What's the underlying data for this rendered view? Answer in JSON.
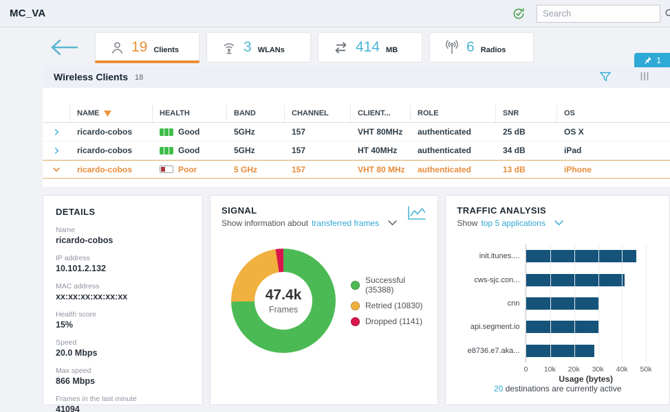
{
  "app": {
    "title": "MC_VA"
  },
  "topbar": {
    "search_placeholder": "Search"
  },
  "colors": {
    "accent_orange": "#ee8d35",
    "accent_teal": "#3fb3d8",
    "bar_navy": "#15537a"
  },
  "tabs": {
    "items": [
      {
        "count": "19",
        "label": "Clients",
        "icon": "person",
        "active": true
      },
      {
        "count": "3",
        "label": "WLANs",
        "icon": "wifi",
        "active": false
      },
      {
        "count": "414",
        "label": "MB",
        "icon": "transfer-arrows",
        "active": false
      },
      {
        "count": "6",
        "label": "Radios",
        "icon": "antenna",
        "active": false
      }
    ],
    "pin_badge_count": "1"
  },
  "clients_section": {
    "title": "Wireless Clients",
    "count": "18"
  },
  "table": {
    "columns": [
      "NAME",
      "HEALTH",
      "BAND",
      "CHANNEL",
      "CLIENT...",
      "ROLE",
      "SNR",
      "OS"
    ],
    "sorted_column": "NAME",
    "rows": [
      {
        "name": "ricardo-cobos",
        "health": "Good",
        "health_level": "good",
        "band": "5GHz",
        "channel": "157",
        "client": "VHT 80MHz",
        "role": "authenticated",
        "snr": "25 dB",
        "os": "OS X",
        "expanded": false,
        "selected": false
      },
      {
        "name": "ricardo-cobos",
        "health": "Good",
        "health_level": "good",
        "band": "5GHz",
        "channel": "157",
        "client": "HT 40MHz",
        "role": "authenticated",
        "snr": "34 dB",
        "os": "iPad",
        "expanded": false,
        "selected": false
      },
      {
        "name": "ricardo-cobos",
        "health": "Poor",
        "health_level": "poor",
        "band": "5 GHz",
        "channel": "157",
        "client": "VHT 80 MHz",
        "role": "authenticated",
        "snr": "13 dB",
        "os": "iPhone",
        "expanded": true,
        "selected": true
      }
    ]
  },
  "details": {
    "title": "DETAILS",
    "fields": [
      {
        "label": "Name",
        "value": "ricardo-cobos"
      },
      {
        "label": "IP address",
        "value": "10.101.2.132"
      },
      {
        "label": "MAC address",
        "value": "xx:xx:xx:xx:xx:xx"
      },
      {
        "label": "Health score",
        "value": "15%"
      },
      {
        "label": "Speed",
        "value": "20.0 Mbps"
      },
      {
        "label": "Max speed",
        "value": "866 Mbps"
      },
      {
        "label": "Frames in the last minute",
        "value": "41094"
      }
    ]
  },
  "signal": {
    "title": "SIGNAL",
    "subtitle_prefix": "Show information about",
    "subtitle_link": "transferred frames"
  },
  "traffic": {
    "title": "TRAFFIC ANALYSIS",
    "subtitle_prefix": "Show",
    "subtitle_link": "top 5 applications",
    "footer_count": "20",
    "footer_text": "destinations are currently active"
  },
  "chart_data": [
    {
      "type": "pie",
      "donut": true,
      "title": "Signal transferred frames",
      "center_label": "47.4k",
      "center_sublabel": "Frames",
      "legend_position": "right",
      "slices": [
        {
          "label": "Successful",
          "value": 35388,
          "color": "#4cba54"
        },
        {
          "label": "Retried",
          "value": 10830,
          "color": "#f0b13f"
        },
        {
          "label": "Dropped",
          "value": 1141,
          "color": "#d9174d"
        }
      ]
    },
    {
      "type": "bar",
      "orientation": "horizontal",
      "title": "Top 5 applications",
      "categories": [
        "init.itunes....",
        "cws-sjc.con...",
        "cnn",
        "api.segment.io",
        "e8736.e7.aka..."
      ],
      "values": [
        46000,
        41000,
        30500,
        30000,
        28500
      ],
      "xlabel": "Usage (bytes)",
      "xticks": [
        "0",
        "10k",
        "20k",
        "30k",
        "40k",
        "50k"
      ],
      "xlim": [
        0,
        50000
      ],
      "grid": true,
      "bar_color": "#15537a"
    }
  ]
}
